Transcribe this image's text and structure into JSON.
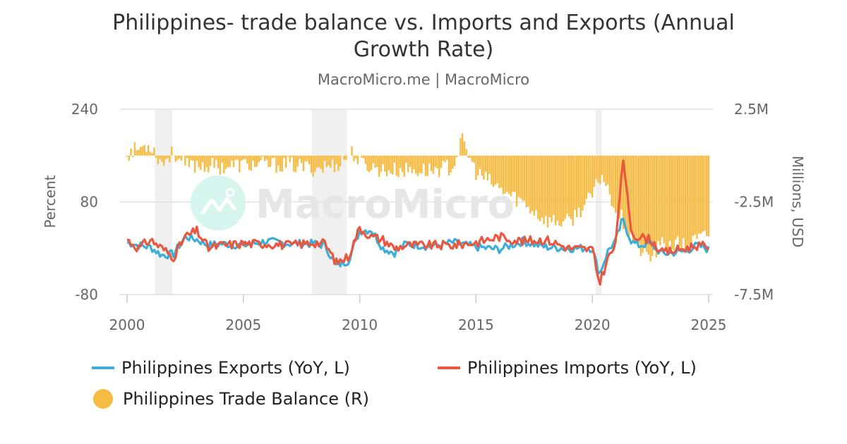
{
  "header": {
    "title_line1": "Philippines- trade balance vs. Imports and Exports (Annual",
    "title_line2": "Growth Rate)",
    "subtitle": "MacroMicro.me | MacroMicro"
  },
  "watermark": {
    "text": "MacroMicro",
    "icon": "macromicro-logo-icon"
  },
  "colors": {
    "exports": "#3dadd9",
    "imports": "#e9573f",
    "trade_balance": "#f6bb42",
    "grid": "#e0e0e0",
    "recession": "#f0f0f0",
    "axis_text": "#666666"
  },
  "legend": {
    "exports": "Philippines Exports (YoY, L)",
    "imports": "Philippines Imports (YoY, L)",
    "trade_balance": "Philippines Trade Balance (R)"
  },
  "chart_data": {
    "type": "line+bar",
    "title": "Philippines- trade balance vs. Imports and Exports (Annual Growth Rate)",
    "subtitle": "MacroMicro.me | MacroMicro",
    "xlabel": "",
    "ylabel_left": "Percent",
    "ylabel_right": "Millions, USD",
    "x_ticks": [
      "2000",
      "2005",
      "2010",
      "2015",
      "2020",
      "2025"
    ],
    "y_left_ticks": [
      "240",
      "80",
      "-80"
    ],
    "y_left_range": [
      -80,
      240
    ],
    "y_right_ticks": [
      "2.5M",
      "-2.5M",
      "-7.5M"
    ],
    "y_right_range": [
      -7.5,
      2.5
    ],
    "recession_bands": [
      [
        2001.2,
        2001.95
      ],
      [
        2007.95,
        2009.45
      ],
      [
        2020.15,
        2020.4
      ]
    ],
    "x_start": 2000.0,
    "x_step_years": 0.0833,
    "grid": true,
    "legend_position": "bottom",
    "series": [
      {
        "name": "Philippines Exports (YoY, L)",
        "type": "line",
        "axis": "left",
        "annual_anchor_values": {
          "2000": 10,
          "2000.5": 5,
          "2001": 2,
          "2001.5": -12,
          "2002": -10,
          "2002.5": 20,
          "2003": 15,
          "2003.5": 5,
          "2004": 8,
          "2005": 5,
          "2006": 12,
          "2007": 8,
          "2008": 8,
          "2008.5": 5,
          "2009": -30,
          "2009.5": -22,
          "2010": 30,
          "2010.5": 32,
          "2011": 0,
          "2011.5": -8,
          "2012": 8,
          "2013": 3,
          "2014": 10,
          "2015": 2,
          "2016": -2,
          "2017": 12,
          "2018": 2,
          "2019": 0,
          "2020": 0,
          "2020.3": -45,
          "2020.7": -2,
          "2021": 12,
          "2021.3": 50,
          "2021.7": 10,
          "2022": 5,
          "2022.5": 8,
          "2023": -10,
          "2024": -5,
          "2024.5": 5,
          "2025": -2
        }
      },
      {
        "name": "Philippines Imports (YoY, L)",
        "type": "line",
        "axis": "left",
        "annual_anchor_values": {
          "2000": 15,
          "2000.5": 0,
          "2001": 15,
          "2001.5": 0,
          "2002": -15,
          "2002.5": 20,
          "2003": 30,
          "2003.5": 0,
          "2004": 5,
          "2005": 8,
          "2006": 8,
          "2007": 5,
          "2008": 10,
          "2008.5": 8,
          "2009": -25,
          "2009.5": -15,
          "2010": 35,
          "2010.5": 20,
          "2011": 15,
          "2011.5": 0,
          "2012": 5,
          "2013": 5,
          "2014": 5,
          "2015": 10,
          "2016": 20,
          "2017": 12,
          "2018": 15,
          "2019": 0,
          "2020": -2,
          "2020.3": -60,
          "2020.7": -15,
          "2021": 5,
          "2021.3": 155,
          "2021.7": 25,
          "2022": 20,
          "2022.5": 15,
          "2023": -8,
          "2024": 0,
          "2024.5": 5,
          "2025": 2
        }
      },
      {
        "name": "Philippines Trade Balance (R)",
        "type": "bar",
        "axis": "right",
        "annual_anchor_values": {
          "2000": 0.1,
          "2000.5": 0.4,
          "2001": 0.6,
          "2001.5": -0.4,
          "2002": 0.2,
          "2002.5": -0.6,
          "2003": -0.5,
          "2004": -0.6,
          "2005": -0.5,
          "2006": -0.5,
          "2007": -0.5,
          "2008": -0.7,
          "2009": -0.5,
          "2009.7": 0.2,
          "2010": -0.4,
          "2011": -0.8,
          "2012": -0.8,
          "2013": -0.8,
          "2014": -0.6,
          "2014.4": 0.8,
          "2015": -0.9,
          "2016": -1.8,
          "2017": -2.5,
          "2018": -3.5,
          "2019": -3.6,
          "2020": -2.2,
          "2020.4": -1.0,
          "2021": -2.8,
          "2022": -5.0,
          "2022.5": -5.5,
          "2023": -4.8,
          "2024": -4.8,
          "2025": -4.3
        }
      }
    ]
  },
  "axes": {
    "left_label": "Percent",
    "right_label": "Millions, USD",
    "left_ticks": [
      {
        "label": "240",
        "value": 240
      },
      {
        "label": "80",
        "value": 80
      },
      {
        "label": "-80",
        "value": -80
      }
    ],
    "right_ticks": [
      {
        "label": "2.5M",
        "value": 2.5
      },
      {
        "label": "-2.5M",
        "value": -2.5
      },
      {
        "label": "-7.5M",
        "value": -7.5
      }
    ],
    "x_ticks": [
      {
        "label": "2000",
        "value": 2000
      },
      {
        "label": "2005",
        "value": 2005
      },
      {
        "label": "2010",
        "value": 2010
      },
      {
        "label": "2015",
        "value": 2015
      },
      {
        "label": "2020",
        "value": 2020
      },
      {
        "label": "2025",
        "value": 2025
      }
    ]
  }
}
